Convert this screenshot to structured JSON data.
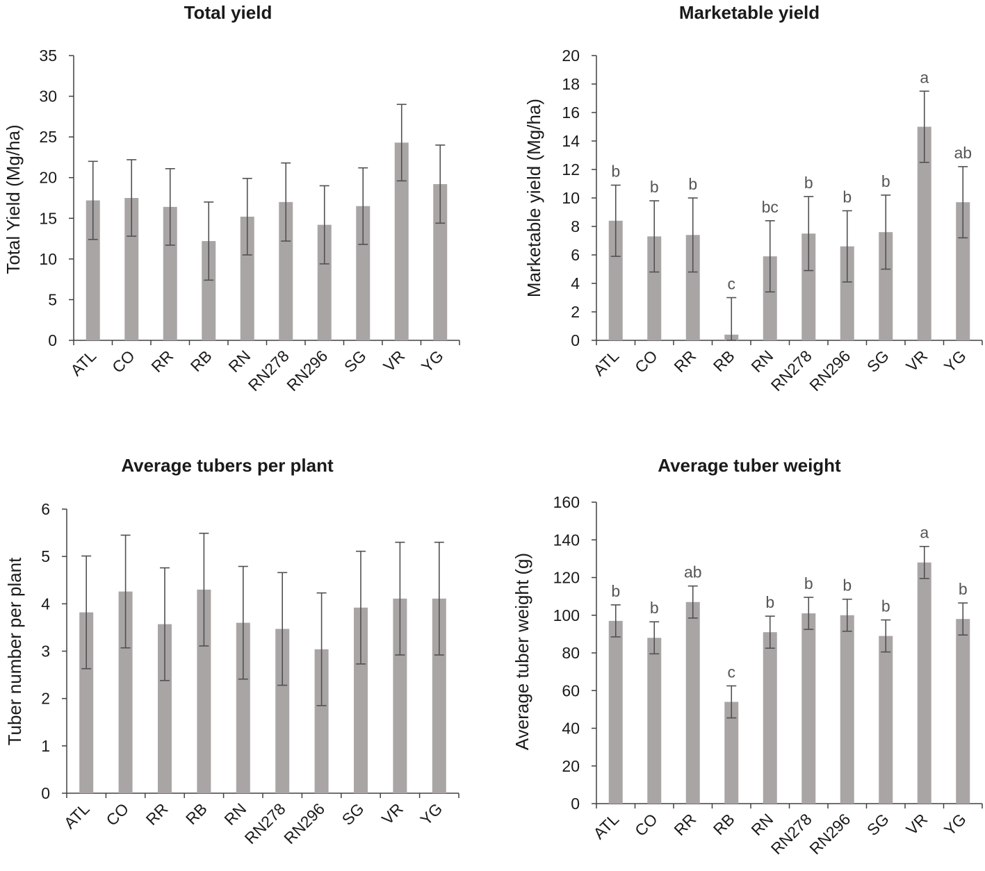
{
  "chart_data": [
    {
      "type": "bar",
      "title": "Total yield",
      "xlabel": "",
      "ylabel": "Total Yield (Mg/ha)",
      "ylim": [
        0,
        35
      ],
      "yticks": [
        0,
        5,
        10,
        15,
        20,
        25,
        30,
        35
      ],
      "categories": [
        "ATL",
        "CO",
        "RR",
        "RB",
        "RN",
        "RN278",
        "RN296",
        "SG",
        "VR",
        "YG"
      ],
      "values": [
        17.2,
        17.5,
        16.4,
        12.2,
        15.2,
        17.0,
        14.2,
        16.5,
        24.3,
        19.2
      ],
      "errors": [
        4.8,
        4.7,
        4.7,
        4.8,
        4.7,
        4.8,
        4.8,
        4.7,
        4.7,
        4.8
      ],
      "letters": []
    },
    {
      "type": "bar",
      "title": "Marketable yield",
      "xlabel": "",
      "ylabel": "Marketable  yield (Mg/ha)",
      "ylim": [
        0,
        20
      ],
      "yticks": [
        0,
        2,
        4,
        6,
        8,
        10,
        12,
        14,
        16,
        18,
        20
      ],
      "categories": [
        "ATL",
        "CO",
        "RR",
        "RB",
        "RN",
        "RN278",
        "RN296",
        "SG",
        "VR",
        "YG"
      ],
      "values": [
        8.4,
        7.3,
        7.4,
        0.4,
        5.9,
        7.5,
        6.6,
        7.6,
        15.0,
        9.7
      ],
      "errors": [
        2.5,
        2.5,
        2.6,
        2.6,
        2.5,
        2.6,
        2.5,
        2.6,
        2.5,
        2.5
      ],
      "letters": [
        "b",
        "b",
        "b",
        "c",
        "bc",
        "b",
        "b",
        "b",
        "a",
        "ab"
      ]
    },
    {
      "type": "bar",
      "title": "Average tubers per plant",
      "xlabel": "",
      "ylabel": "Tuber number per plant",
      "ylim": [
        0,
        6
      ],
      "yticks": [
        0,
        1,
        2,
        3,
        4,
        5,
        6
      ],
      "categories": [
        "ATL",
        "CO",
        "RR",
        "RB",
        "RN",
        "RN278",
        "RN296",
        "SG",
        "VR",
        "YG"
      ],
      "values": [
        3.82,
        4.26,
        3.57,
        4.3,
        3.6,
        3.47,
        3.04,
        3.92,
        4.11,
        4.11
      ],
      "errors": [
        1.19,
        1.19,
        1.19,
        1.19,
        1.19,
        1.19,
        1.19,
        1.19,
        1.19,
        1.19
      ],
      "letters": []
    },
    {
      "type": "bar",
      "title": "Average tuber weight",
      "xlabel": "",
      "ylabel": "Average tuber weight (g)",
      "ylim": [
        0,
        160
      ],
      "yticks": [
        0,
        20,
        40,
        60,
        80,
        100,
        120,
        140,
        160
      ],
      "categories": [
        "ATL",
        "CO",
        "RR",
        "RB",
        "RN",
        "RN278",
        "RN296",
        "SG",
        "VR",
        "YG"
      ],
      "values": [
        97,
        88,
        107,
        54,
        91,
        101,
        100,
        89,
        128,
        98
      ],
      "errors": [
        8.5,
        8.5,
        8.5,
        8.5,
        8.5,
        8.5,
        8.5,
        8.5,
        8.5,
        8.5
      ],
      "letters": [
        "b",
        "b",
        "ab",
        "c",
        "b",
        "b",
        "b",
        "b",
        "a",
        "b"
      ]
    }
  ]
}
